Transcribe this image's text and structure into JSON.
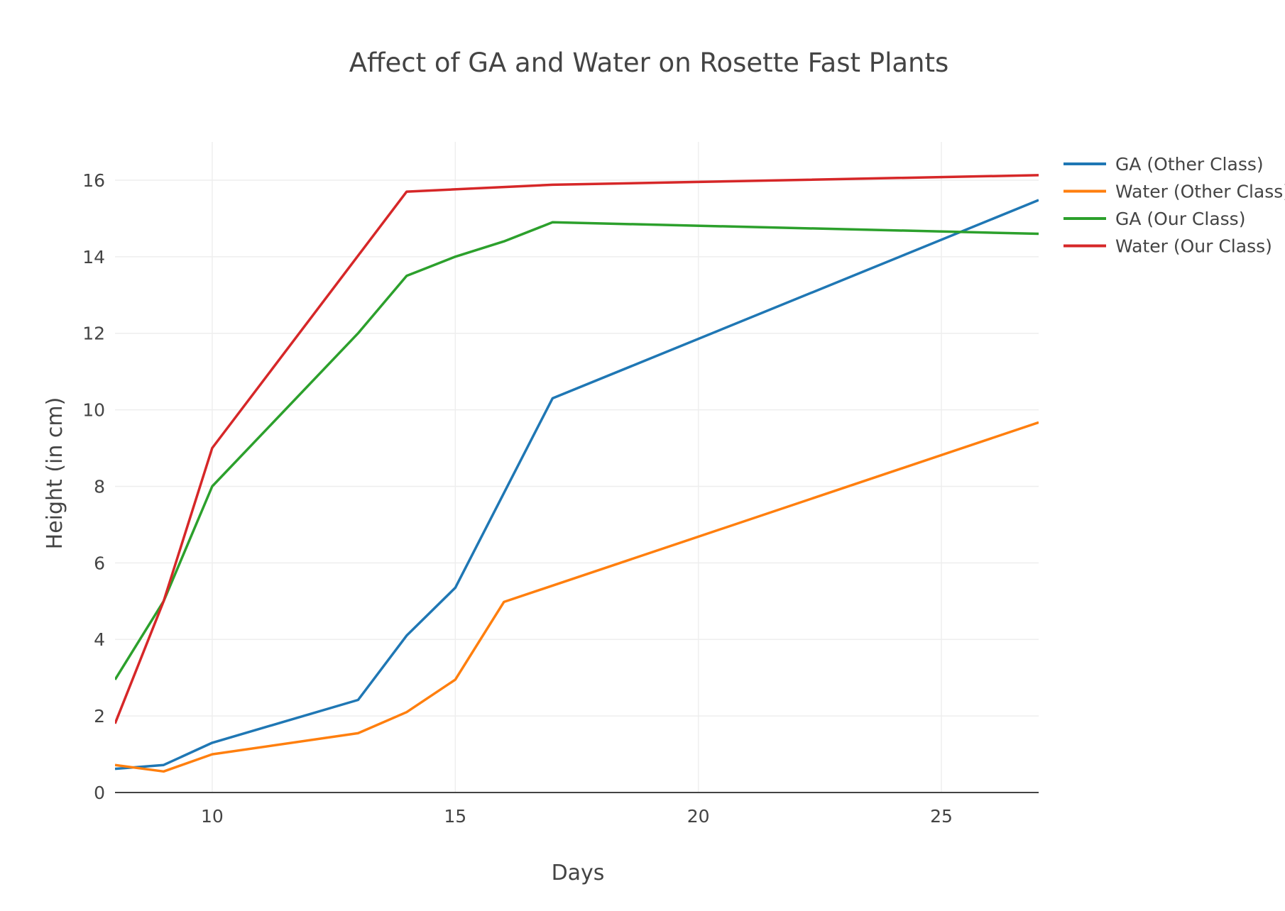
{
  "chart_data": {
    "type": "line",
    "title": "Affect of GA and Water on Rosette Fast Plants",
    "xlabel": "Days",
    "ylabel": "Height (in cm)",
    "xlim": [
      8,
      27
    ],
    "ylim": [
      0,
      17
    ],
    "x_ticks": [
      10,
      15,
      20,
      25
    ],
    "y_ticks": [
      0,
      2,
      4,
      6,
      8,
      10,
      12,
      14,
      16
    ],
    "grid": true,
    "legend_position": "right",
    "series": [
      {
        "name": "GA (Other Class)",
        "color": "#1f77b4",
        "x": [
          8,
          9,
          10,
          13,
          14,
          15,
          17,
          27
        ],
        "y": [
          0.62,
          0.72,
          1.3,
          2.42,
          4.1,
          5.35,
          10.3,
          15.48
        ]
      },
      {
        "name": "Water (Other Class)",
        "color": "#ff7f0e",
        "x": [
          8,
          9,
          10,
          13,
          14,
          15,
          16,
          27
        ],
        "y": [
          0.72,
          0.55,
          1.0,
          1.55,
          2.1,
          2.95,
          4.98,
          9.67
        ]
      },
      {
        "name": "GA (Our Class)",
        "color": "#2ca02c",
        "x": [
          8,
          9,
          10,
          13,
          14,
          15,
          16,
          17,
          27
        ],
        "y": [
          2.95,
          5.0,
          8.0,
          12.0,
          13.5,
          14.0,
          14.4,
          14.9,
          14.6
        ]
      },
      {
        "name": "Water (Our Class)",
        "color": "#d62728",
        "x": [
          8,
          9,
          10,
          14,
          17,
          27
        ],
        "y": [
          1.8,
          5.0,
          9.0,
          15.7,
          15.88,
          16.13
        ]
      }
    ]
  }
}
